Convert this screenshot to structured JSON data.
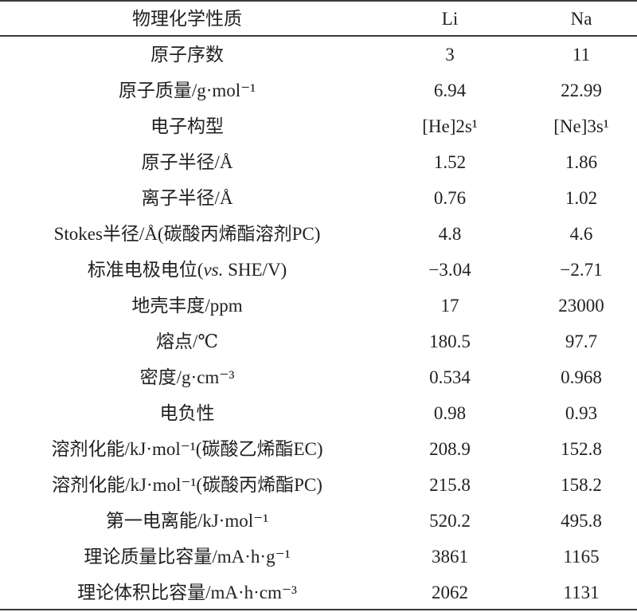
{
  "table": {
    "headers": [
      "物理化学性质",
      "Li",
      "Na"
    ],
    "rows": [
      {
        "property": "原子序数",
        "li": "3",
        "na": "11"
      },
      {
        "property": "原子质量/g·mol⁻¹",
        "li": "6.94",
        "na": "22.99"
      },
      {
        "property": "电子构型",
        "li": "[He]2s¹",
        "na": "[Ne]3s¹"
      },
      {
        "property": "原子半径/Å",
        "li": "1.52",
        "na": "1.86"
      },
      {
        "property": "离子半径/Å",
        "li": "0.76",
        "na": "1.02"
      },
      {
        "property": "Stokes半径/Å(碳酸丙烯酯溶剂PC)",
        "li": "4.8",
        "na": "4.6"
      },
      {
        "property_pre": "标准电极电位(",
        "property_italic": "vs.",
        "property_post": " SHE/V)",
        "li": "−3.04",
        "na": "−2.71"
      },
      {
        "property": "地壳丰度/ppm",
        "li": "17",
        "na": "23000"
      },
      {
        "property": "熔点/℃",
        "li": "180.5",
        "na": "97.7"
      },
      {
        "property": "密度/g·cm⁻³",
        "li": "0.534",
        "na": "0.968"
      },
      {
        "property": "电负性",
        "li": "0.98",
        "na": "0.93"
      },
      {
        "property": "溶剂化能/kJ·mol⁻¹(碳酸乙烯酯EC)",
        "li": "208.9",
        "na": "152.8"
      },
      {
        "property": "溶剂化能/kJ·mol⁻¹(碳酸丙烯酯PC)",
        "li": "215.8",
        "na": "158.2"
      },
      {
        "property": "第一电离能/kJ·mol⁻¹",
        "li": "520.2",
        "na": "495.8"
      },
      {
        "property": "理论质量比容量/mA·h·g⁻¹",
        "li": "3861",
        "na": "1165"
      },
      {
        "property": "理论体积比容量/mA·h·cm⁻³",
        "li": "2062",
        "na": "1131"
      }
    ]
  }
}
